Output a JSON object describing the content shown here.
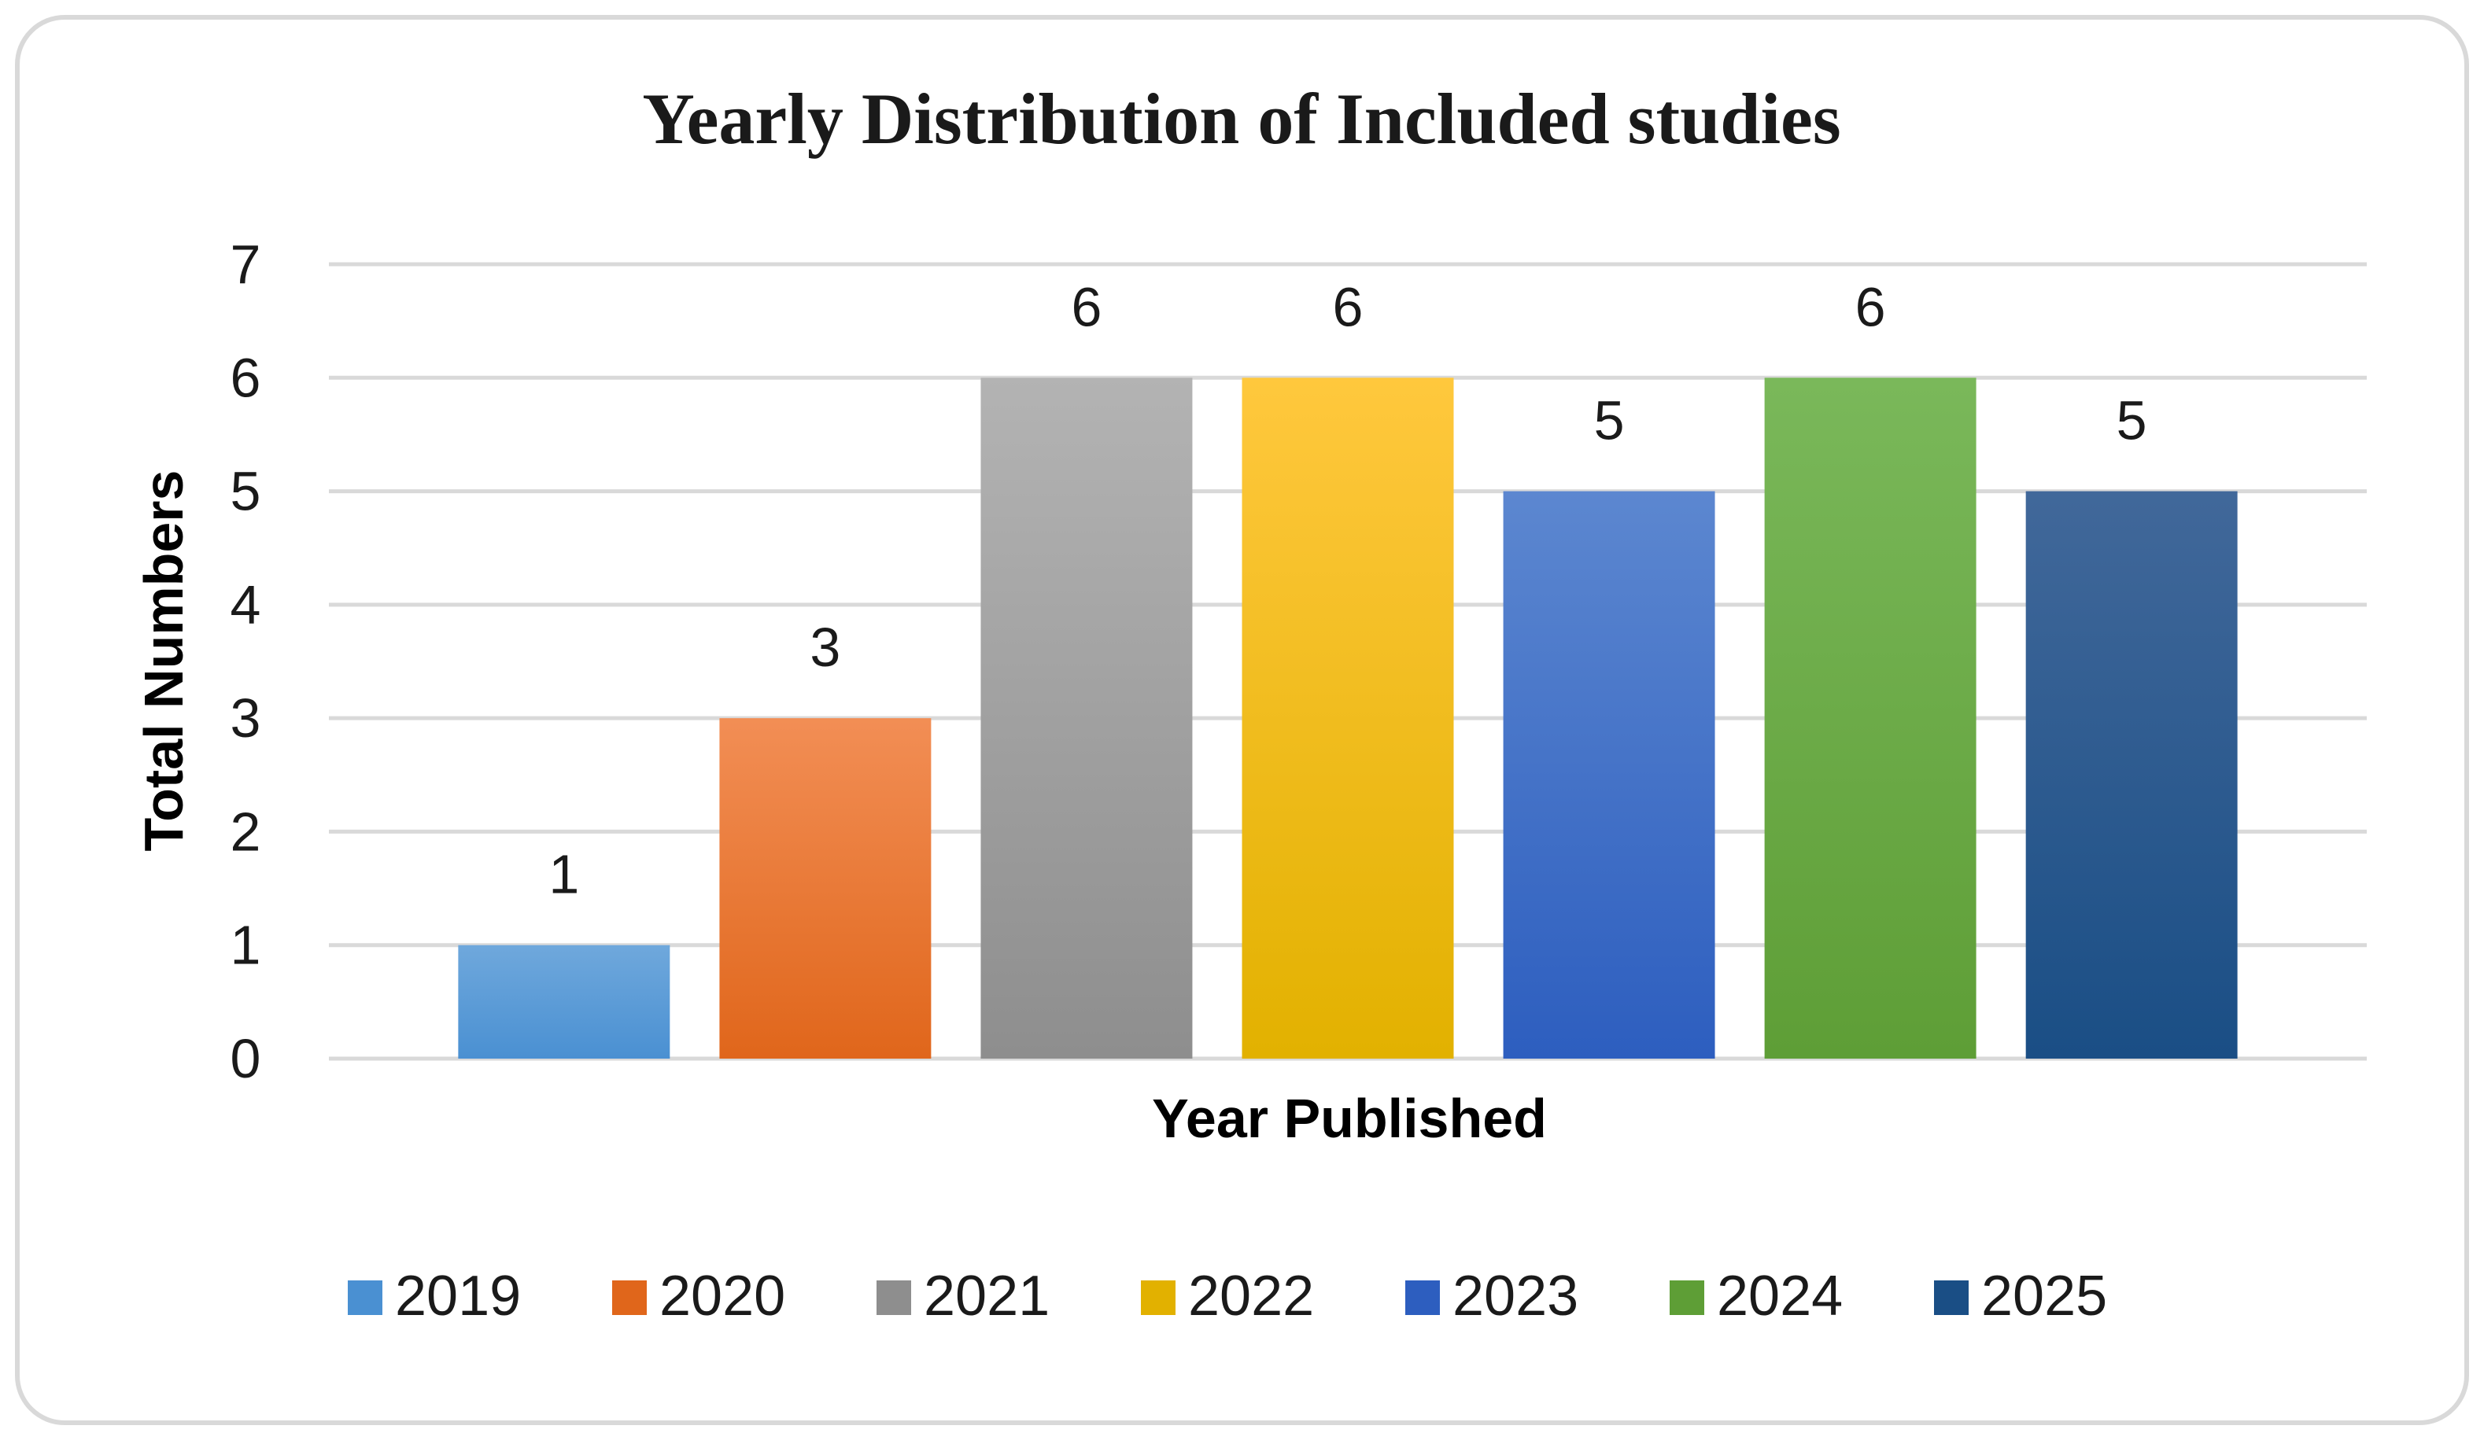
{
  "chart_data": {
    "type": "bar",
    "title": "Yearly Distribution of Included studies",
    "xlabel": "Year Published",
    "ylabel": "Total Numbers",
    "ylim": [
      0,
      7
    ],
    "yticks": [
      "0",
      "1",
      "2",
      "3",
      "4",
      "5",
      "6",
      "7"
    ],
    "grid": true,
    "legend_position": "bottom",
    "categories": [
      "2019",
      "2020",
      "2021",
      "2022",
      "2023",
      "2024",
      "2025"
    ],
    "values": [
      1,
      3,
      6,
      6,
      5,
      6,
      5
    ],
    "data_labels": [
      "1",
      "3",
      "6",
      "6",
      "5",
      "6",
      "5"
    ],
    "series": [
      {
        "name": "2019",
        "value": 1,
        "color_top": "#6FA8DC",
        "color_bottom": "#4A90D2"
      },
      {
        "name": "2020",
        "value": 3,
        "color_top": "#F28E55",
        "color_bottom": "#E0661B"
      },
      {
        "name": "2021",
        "value": 6,
        "color_top": "#B3B3B3",
        "color_bottom": "#8E8E8E"
      },
      {
        "name": "2022",
        "value": 6,
        "color_top": "#FFC83D",
        "color_bottom": "#E2B100"
      },
      {
        "name": "2023",
        "value": 5,
        "color_top": "#5C87D0",
        "color_bottom": "#2D5EBF"
      },
      {
        "name": "2024",
        "value": 6,
        "color_top": "#7AB85A",
        "color_bottom": "#5E9E36"
      },
      {
        "name": "2025",
        "value": 5,
        "color_top": "#41689A",
        "color_bottom": "#1A4E85"
      }
    ]
  }
}
